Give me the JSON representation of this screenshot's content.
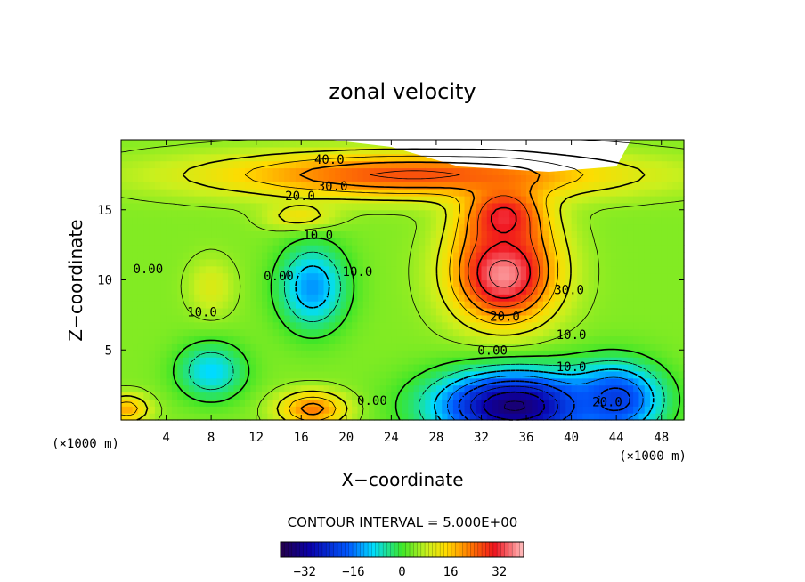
{
  "chart_data": {
    "type": "contour",
    "title": "zonal velocity",
    "xlabel": "X−coordinate",
    "ylabel": "Z−coordinate",
    "x_unit_left": "(×1000 m)",
    "x_unit_right": "(×1000 m)",
    "xlim": [
      0,
      50
    ],
    "ylim": [
      0,
      20
    ],
    "x_ticks": [
      4,
      8,
      12,
      16,
      20,
      24,
      28,
      32,
      36,
      40,
      44,
      48
    ],
    "y_ticks": [
      5,
      10,
      15
    ],
    "contour_interval_text": "CONTOUR INTERVAL = 5.000E+00",
    "colorbar": {
      "min": -40,
      "max": 40,
      "ticks": [
        "−32",
        "−16",
        "0",
        "16",
        "32"
      ],
      "tick_values": [
        -32,
        -16,
        0,
        16,
        32
      ]
    },
    "contour_labels": [
      {
        "text": "40.0",
        "x": 18.5,
        "y": 18.6
      },
      {
        "text": "30.0",
        "x": 18.8,
        "y": 16.7
      },
      {
        "text": "20.0",
        "x": 15.9,
        "y": 16.0
      },
      {
        "text": "10.0",
        "x": 17.5,
        "y": 13.2
      },
      {
        "text": "0.00",
        "x": 2.4,
        "y": 10.8
      },
      {
        "text": "10.0",
        "x": 7.2,
        "y": 7.7
      },
      {
        "text": "0.00",
        "x": 14.0,
        "y": 10.3
      },
      {
        "text": "10.0",
        "x": 21.0,
        "y": 10.6
      },
      {
        "text": "30.0",
        "x": 39.8,
        "y": 9.3
      },
      {
        "text": "20.0",
        "x": 34.1,
        "y": 7.4
      },
      {
        "text": "10.0",
        "x": 40.0,
        "y": 6.1
      },
      {
        "text": "0.00",
        "x": 33.0,
        "y": 5.0
      },
      {
        "text": "10.0",
        "x": 40.0,
        "y": 3.8
      },
      {
        "text": "20.0",
        "x": 43.2,
        "y": 1.3
      },
      {
        "text": "0.00",
        "x": 22.3,
        "y": 1.4
      }
    ],
    "field_features": [
      {
        "value": 38,
        "x": 34,
        "y": 10.5,
        "sx": 4.5,
        "sy": 3.5
      },
      {
        "value": 32,
        "x": 34,
        "y": 14.5,
        "sx": 3.5,
        "sy": 2.5
      },
      {
        "value": 26,
        "x": 26,
        "y": 17.5,
        "sx": 18,
        "sy": 1.6
      },
      {
        "value": 14,
        "x": 16,
        "y": 14.5,
        "sx": 3.0,
        "sy": 1.0
      },
      {
        "value": -14,
        "x": 17,
        "y": 9.5,
        "sx": 3.0,
        "sy": 3.0
      },
      {
        "value": -10,
        "x": 8,
        "y": 3.5,
        "sx": 3.0,
        "sy": 2.0
      },
      {
        "value": -36,
        "x": 35,
        "y": 1.0,
        "sx": 7.0,
        "sy": 2.5
      },
      {
        "value": -22,
        "x": 44,
        "y": 1.5,
        "sx": 4.0,
        "sy": 2.5
      },
      {
        "value": 22,
        "x": 17,
        "y": 0.8,
        "sx": 3.0,
        "sy": 1.2
      },
      {
        "value": 18,
        "x": 0.5,
        "y": 0.8,
        "sx": 2.0,
        "sy": 1.0
      },
      {
        "value": 10,
        "x": 8,
        "y": 9.5,
        "sx": 2.0,
        "sy": 2.0
      }
    ],
    "no_data_regions": [
      {
        "x": [
          18.5,
          24,
          30,
          38,
          44,
          45.3
        ],
        "y": 20
      }
    ]
  }
}
